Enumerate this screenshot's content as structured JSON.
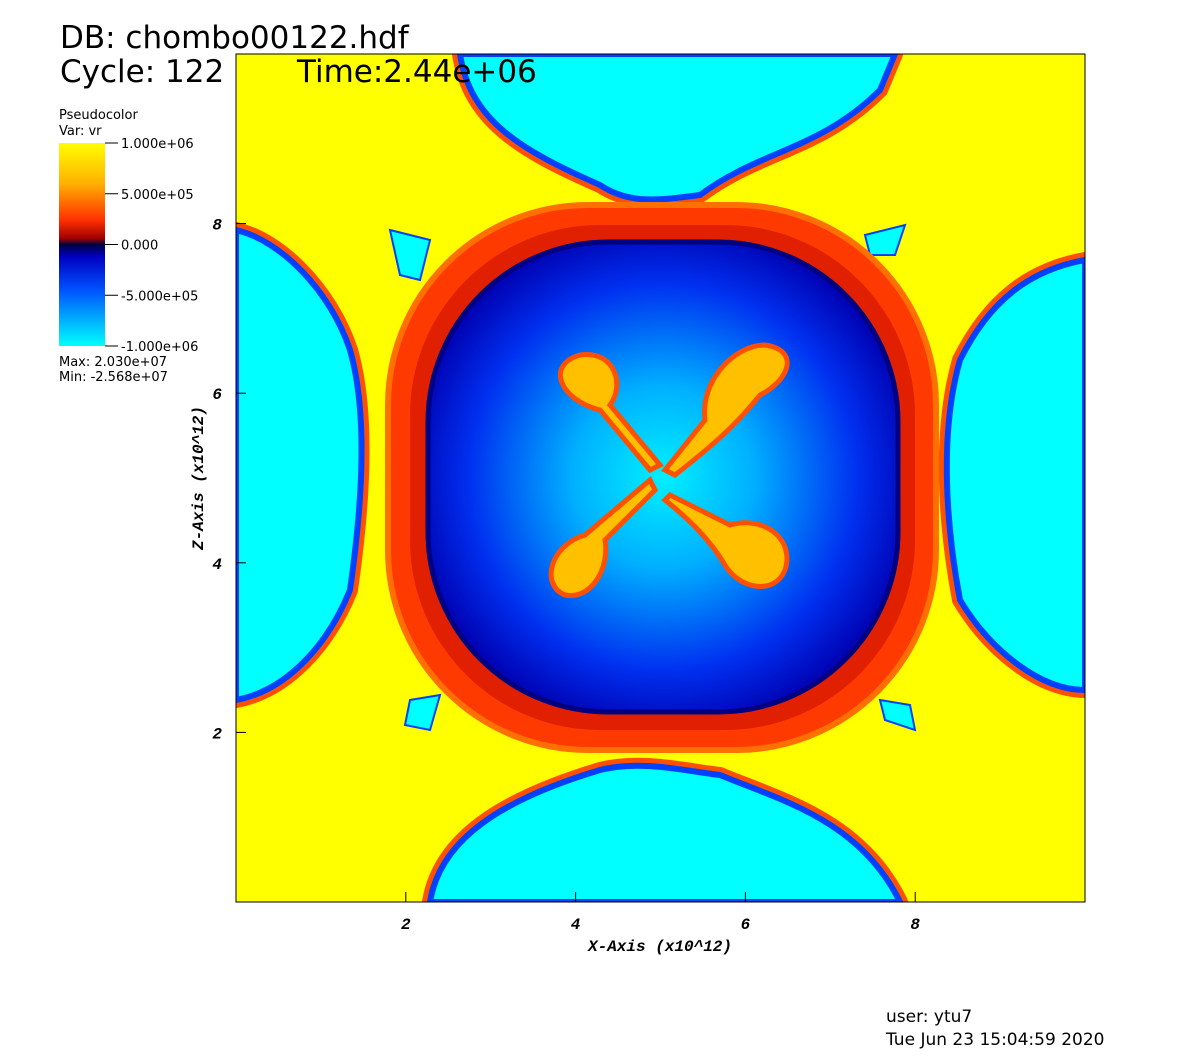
{
  "chart_data": {
    "type": "pseudocolor",
    "database": "DB: chombo00122.hdf",
    "cycle": "Cycle: 122",
    "time": "Time:2.44e+06",
    "legend_title": "Pseudocolor",
    "variable": "Var: vr",
    "max": "Max: 2.030e+07",
    "min": "Min: -2.568e+07",
    "clim": [
      -1000000,
      1000000
    ],
    "colorbar_ticks": [
      {
        "value": 1000000,
        "label": "1.000e+06"
      },
      {
        "value": 500000,
        "label": "5.000e+05"
      },
      {
        "value": 0,
        "label": "0.000"
      },
      {
        "value": -500000,
        "label": "-5.000e+05"
      },
      {
        "value": -1000000,
        "label": "-1.000e+06"
      }
    ],
    "xlabel": "X-Axis (x10^12)",
    "ylabel": "Z-Axis (x10^12)",
    "xlim": [
      0,
      10
    ],
    "ylim": [
      0,
      10
    ],
    "xticks": [
      2,
      4,
      6,
      8
    ],
    "yticks": [
      2,
      4,
      6,
      8
    ],
    "user": "user: ytu7",
    "date": "Tue Jun 23 15:04:59 2020"
  }
}
